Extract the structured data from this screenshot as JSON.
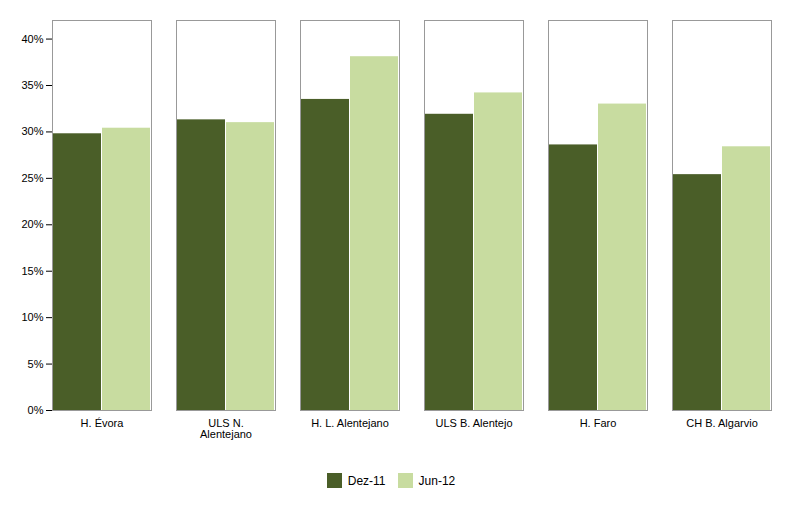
{
  "chart_data": {
    "type": "bar",
    "categories": [
      "H. Évora",
      "ULS N.\nAlentejano",
      "H. L. Alentejano",
      "ULS B. Alentejo",
      "H. Faro",
      "CH B. Algarvio"
    ],
    "series": [
      {
        "name": "Dez-11",
        "color": "#4a5e28",
        "values": [
          0.298,
          0.313,
          0.335,
          0.319,
          0.286,
          0.254
        ]
      },
      {
        "name": "Jun-12",
        "color": "#c8dca0",
        "values": [
          0.304,
          0.31,
          0.381,
          0.342,
          0.33,
          0.284
        ]
      }
    ],
    "ylim": [
      0.0,
      0.42
    ],
    "yticks": [
      {
        "value": 0.0,
        "label": "0%"
      },
      {
        "value": 0.05,
        "label": "5%"
      },
      {
        "value": 0.1,
        "label": "10%"
      },
      {
        "value": 0.15,
        "label": "15%"
      },
      {
        "value": 0.2,
        "label": "20%"
      },
      {
        "value": 0.25,
        "label": "25%"
      },
      {
        "value": 0.3,
        "label": "30%"
      },
      {
        "value": 0.35,
        "label": "35%"
      },
      {
        "value": 0.4,
        "label": "40%"
      }
    ],
    "grid": false,
    "legend": "bottom"
  }
}
